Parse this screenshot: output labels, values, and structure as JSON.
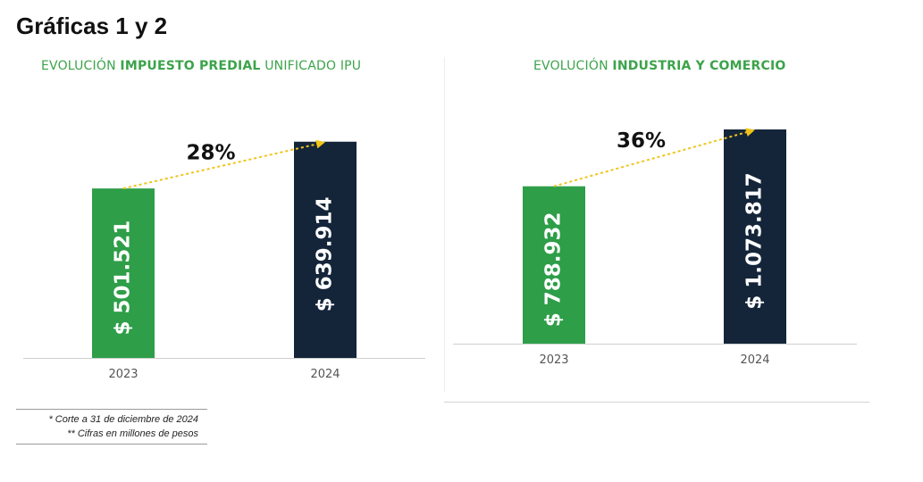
{
  "page": {
    "title": "Gráficas 1 y 2"
  },
  "footnotes": [
    "* Corte a 31 de diciembre de 2024",
    "** Cifras en millones de pesos"
  ],
  "colors": {
    "green": "#2e9e48",
    "navy": "#14253a",
    "title_green": "#3ca34a",
    "arrow": "#f0c419"
  },
  "chart_data": [
    {
      "type": "bar",
      "title_parts": [
        {
          "text": "EVOLUCIÓN ",
          "bold": false
        },
        {
          "text": "IMPUESTO PREDIAL",
          "bold": true
        },
        {
          "text": " UNIFICADO IPU",
          "bold": false
        }
      ],
      "categories": [
        "2023",
        "2024"
      ],
      "values": [
        501521,
        639914
      ],
      "value_labels": [
        "$ 501.521",
        "$ 639.914"
      ],
      "growth_label": "28%",
      "ylim": [
        0,
        700000
      ]
    },
    {
      "type": "bar",
      "title_parts": [
        {
          "text": "EVOLUCIÓN ",
          "bold": false
        },
        {
          "text": "INDUSTRIA Y COMERCIO",
          "bold": true
        }
      ],
      "categories": [
        "2023",
        "2024"
      ],
      "values": [
        788932,
        1073817
      ],
      "value_labels": [
        "$ 788.932",
        "$ 1.073.817"
      ],
      "growth_label": "36%",
      "ylim": [
        0,
        1150000
      ]
    }
  ]
}
